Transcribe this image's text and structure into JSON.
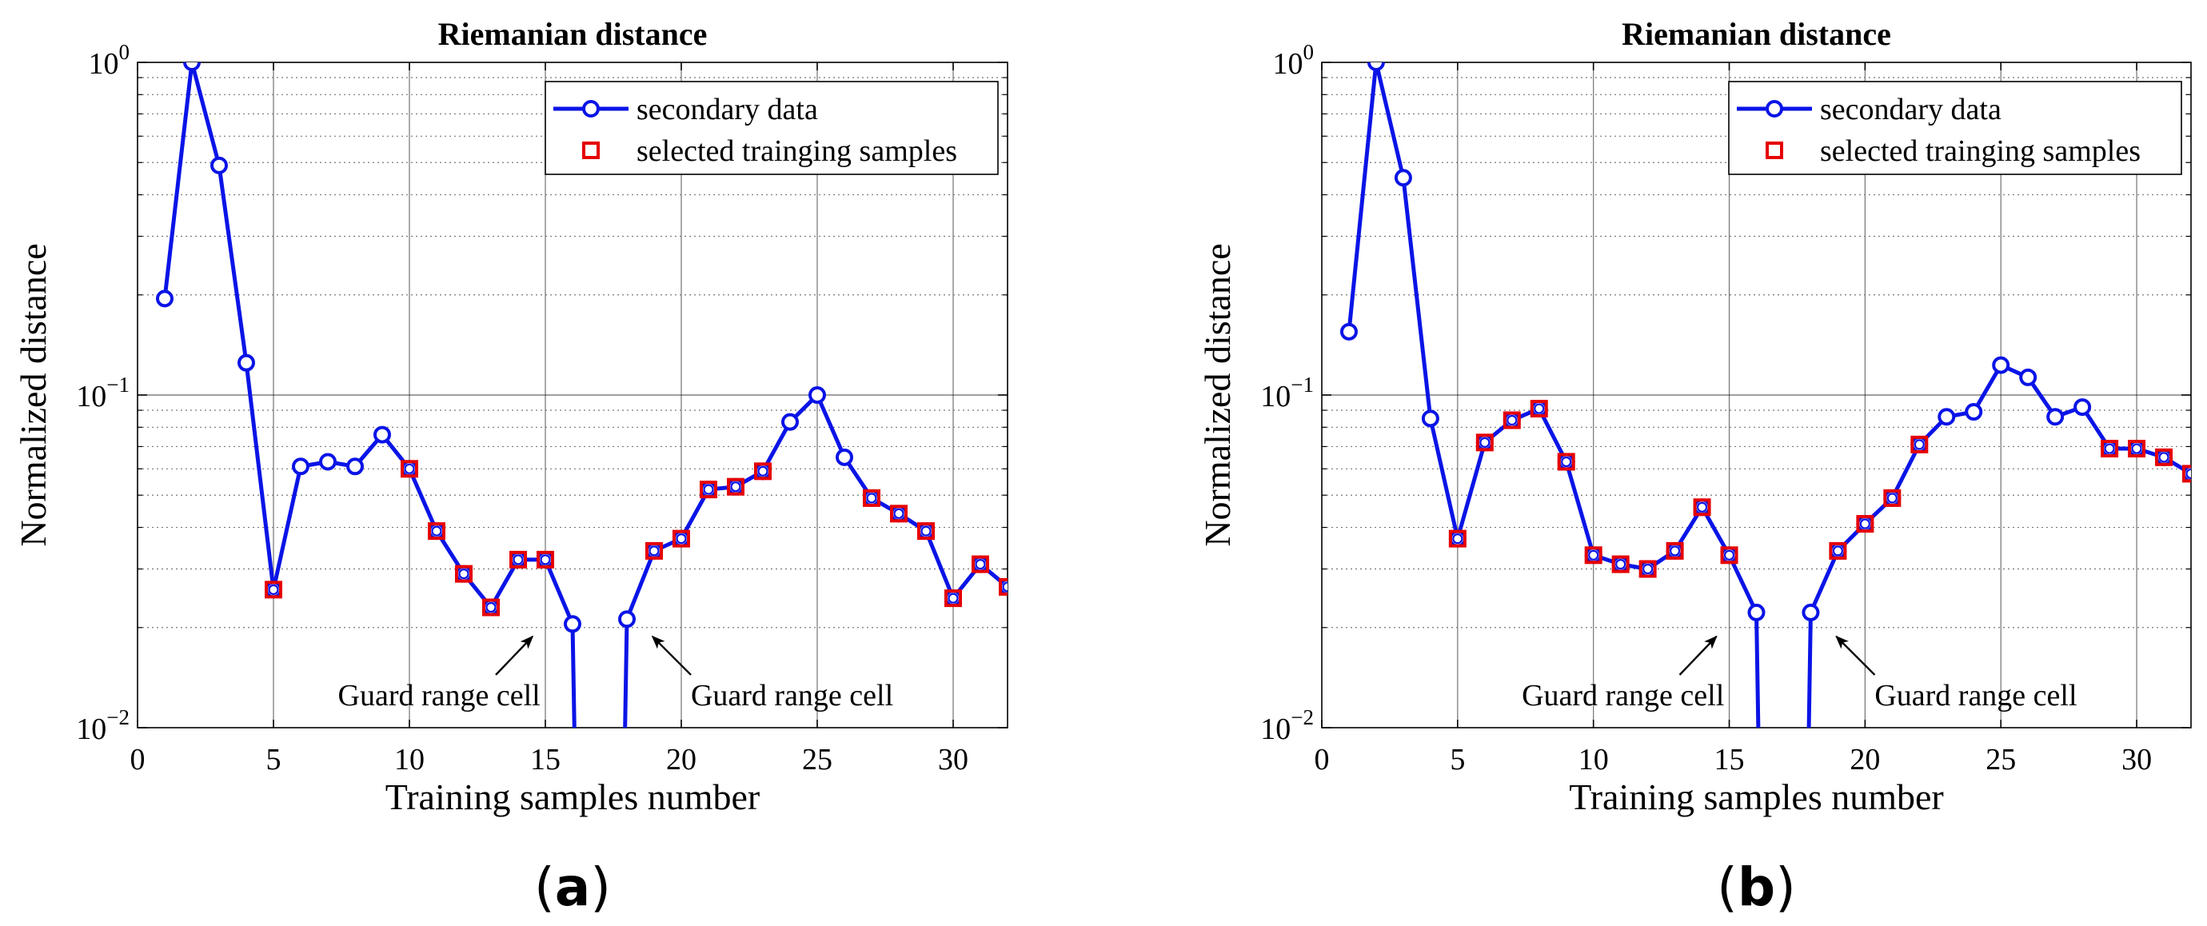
{
  "colors": {
    "line": "#0a14e6",
    "marker_selected": "#e60000",
    "grid_major": "#000000",
    "grid_minor": "#777777",
    "axis": "#000000"
  },
  "chart_data": [
    {
      "type": "line",
      "panel_label": "(a)",
      "panel_label_parts": {
        "open": "(",
        "letter": "a",
        "close": ")"
      },
      "title": "Riemanian distance",
      "xlabel": "Training samples number",
      "ylabel": "Normalized distance",
      "xlim": [
        0,
        32
      ],
      "ylim": [
        0.01,
        1
      ],
      "yscale": "log",
      "grid": true,
      "xticks": [
        "0",
        "5",
        "10",
        "15",
        "20",
        "25",
        "30"
      ],
      "yticks": [
        {
          "base": "10",
          "exp": "0"
        },
        {
          "base": "10",
          "exp": "−1"
        },
        {
          "base": "10",
          "exp": "−2"
        }
      ],
      "legend": {
        "position": "top-right",
        "entries": [
          "secondary data",
          "selected trainging samples"
        ]
      },
      "series": [
        {
          "name": "secondary data",
          "x": [
            1,
            2,
            3,
            4,
            5,
            6,
            7,
            8,
            9,
            10,
            11,
            12,
            13,
            14,
            15,
            16,
            17,
            18,
            19,
            20,
            21,
            22,
            23,
            24,
            25,
            26,
            27,
            28,
            29,
            30,
            31,
            32
          ],
          "values": [
            0.195,
            1.0,
            0.49,
            0.125,
            0.026,
            0.061,
            0.063,
            0.061,
            0.076,
            0.06,
            0.039,
            0.029,
            0.023,
            0.032,
            0.032,
            0.0205,
            null,
            0.0212,
            0.034,
            0.037,
            0.052,
            0.053,
            0.059,
            0.083,
            0.1,
            0.065,
            0.049,
            0.044,
            0.039,
            0.0245,
            0.031,
            0.0265
          ],
          "mask_x": [
            16,
            17,
            18
          ]
        },
        {
          "name": "selected trainging samples",
          "x": [
            5,
            10,
            11,
            12,
            13,
            14,
            15,
            19,
            20,
            21,
            22,
            23,
            27,
            28,
            29,
            30,
            31,
            32
          ],
          "values": [
            0.026,
            0.06,
            0.039,
            0.029,
            0.023,
            0.032,
            0.032,
            0.034,
            0.037,
            0.052,
            0.053,
            0.059,
            0.049,
            0.044,
            0.039,
            0.0245,
            0.031,
            0.0265
          ]
        }
      ],
      "annotations": [
        {
          "text": "Guard range cell",
          "points_to_x": 16,
          "side": "left"
        },
        {
          "text": "Guard range cell",
          "points_to_x": 18,
          "side": "right"
        }
      ]
    },
    {
      "type": "line",
      "panel_label": "(b)",
      "panel_label_parts": {
        "open": "(",
        "letter": "b",
        "close": ")"
      },
      "title": "Riemanian distance",
      "xlabel": "Training samples number",
      "ylabel": "Normalized distance",
      "xlim": [
        0,
        32
      ],
      "ylim": [
        0.01,
        1
      ],
      "yscale": "log",
      "grid": true,
      "xticks": [
        "0",
        "5",
        "10",
        "15",
        "20",
        "25",
        "30"
      ],
      "yticks": [
        {
          "base": "10",
          "exp": "0"
        },
        {
          "base": "10",
          "exp": "−1"
        },
        {
          "base": "10",
          "exp": "−2"
        }
      ],
      "legend": {
        "position": "top-right",
        "entries": [
          "secondary data",
          "selected trainging samples"
        ]
      },
      "series": [
        {
          "name": "secondary data",
          "x": [
            1,
            2,
            3,
            4,
            5,
            6,
            7,
            8,
            9,
            10,
            11,
            12,
            13,
            14,
            15,
            16,
            17,
            18,
            19,
            20,
            21,
            22,
            23,
            24,
            25,
            26,
            27,
            28,
            29,
            30,
            31,
            32
          ],
          "values": [
            0.155,
            1.0,
            0.45,
            0.085,
            0.037,
            0.072,
            0.084,
            0.091,
            0.063,
            0.033,
            0.031,
            0.03,
            0.034,
            0.046,
            0.033,
            0.0222,
            null,
            0.0222,
            0.034,
            0.041,
            0.049,
            0.071,
            0.086,
            0.089,
            0.123,
            0.113,
            0.086,
            0.092,
            0.069,
            0.069,
            0.065,
            0.058
          ],
          "mask_x": [
            16,
            17,
            18
          ]
        },
        {
          "name": "selected trainging samples",
          "x": [
            5,
            6,
            7,
            8,
            9,
            10,
            11,
            12,
            13,
            14,
            15,
            19,
            20,
            21,
            22,
            29,
            30,
            31,
            32
          ],
          "values": [
            0.037,
            0.072,
            0.084,
            0.091,
            0.063,
            0.033,
            0.031,
            0.03,
            0.034,
            0.046,
            0.033,
            0.034,
            0.041,
            0.049,
            0.071,
            0.069,
            0.069,
            0.065,
            0.058
          ]
        }
      ],
      "annotations": [
        {
          "text": "Guard range cell",
          "points_to_x": 16,
          "side": "left"
        },
        {
          "text": "Guard range cell",
          "points_to_x": 18,
          "side": "right"
        }
      ]
    }
  ]
}
